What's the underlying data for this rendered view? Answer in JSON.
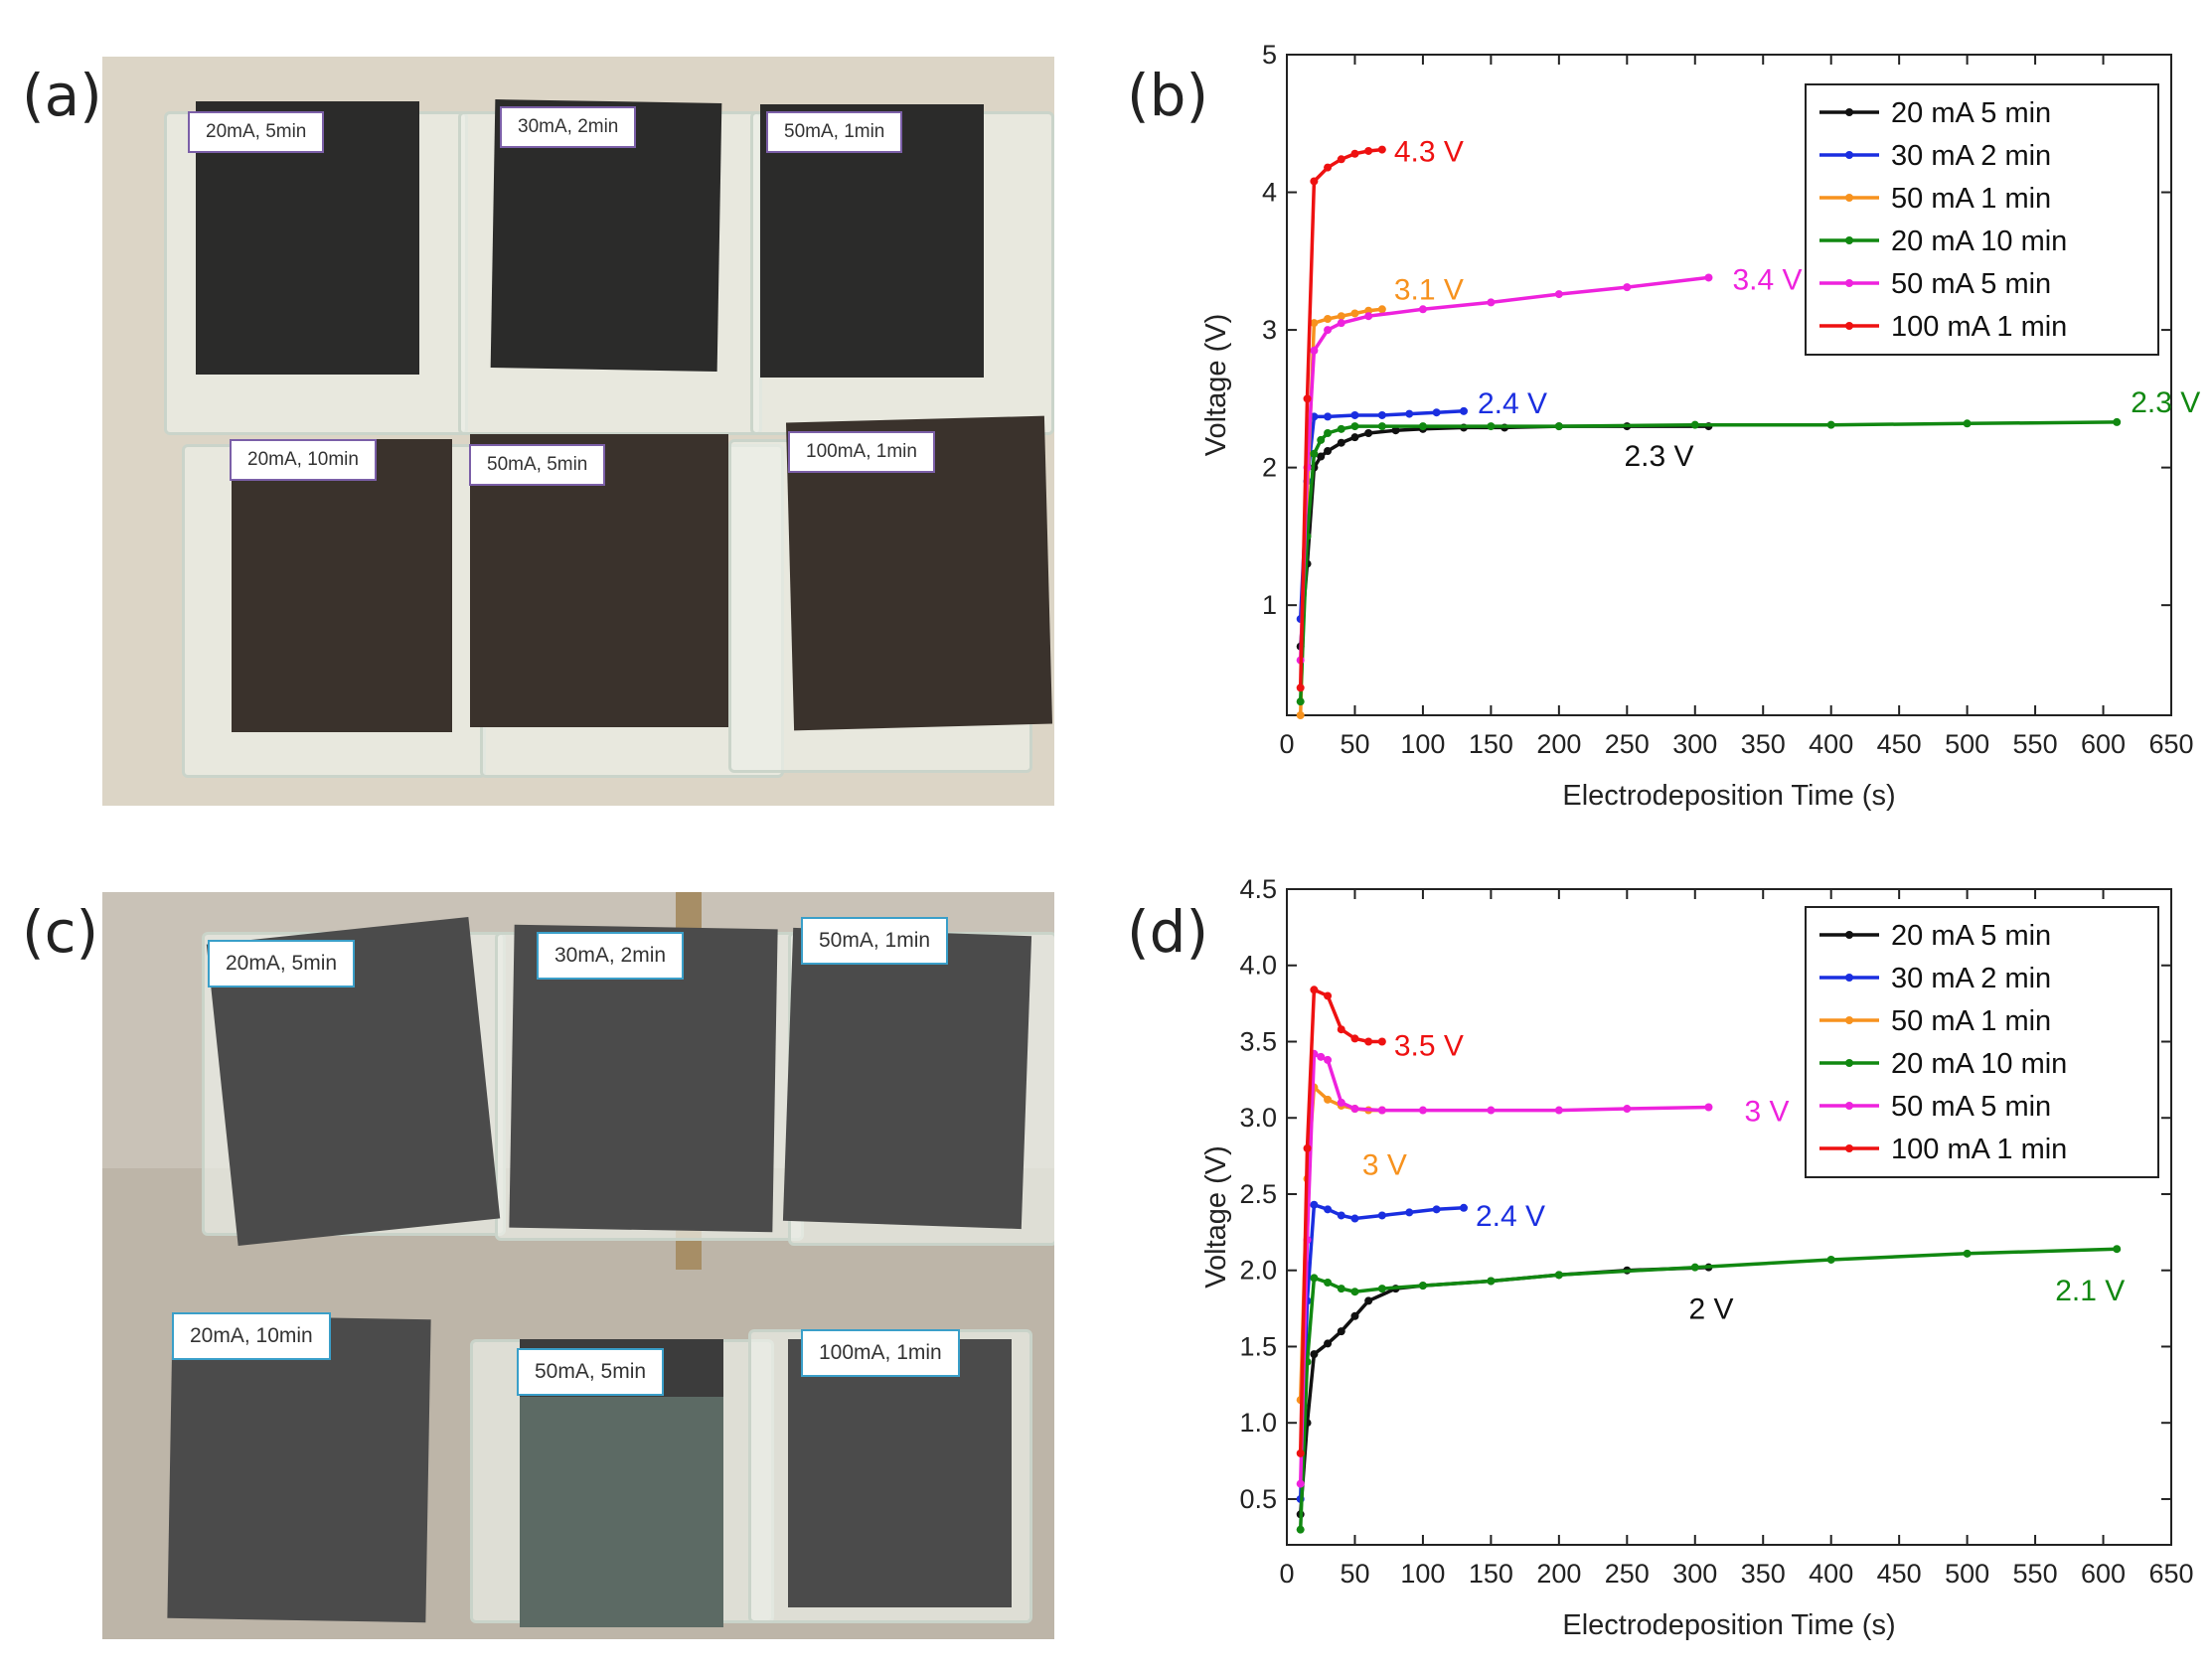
{
  "panels": {
    "a": "(a)",
    "b": "(b)",
    "c": "(c)",
    "d": "(d)"
  },
  "photo_a": {
    "labels": [
      "20mA, 5min",
      "30mA, 2min",
      "50mA, 1min",
      "20mA, 10min",
      "50mA, 5min",
      "100mA, 1min"
    ]
  },
  "photo_c": {
    "labels": [
      "20mA, 5min",
      "30mA, 2min",
      "50mA, 1min",
      "20mA, 10min",
      "50mA, 5min",
      "100mA, 1min"
    ]
  },
  "chart_data": [
    {
      "type": "line",
      "panel": "(b)",
      "xlabel": "Electrodeposition Time (s)",
      "ylabel": "Voltage (V)",
      "xlim": [
        0,
        650
      ],
      "ylim": [
        0.2,
        5
      ],
      "xticks": [
        0,
        50,
        100,
        150,
        200,
        250,
        300,
        350,
        400,
        450,
        500,
        550,
        600,
        650
      ],
      "yticks": [
        1,
        2,
        3,
        4,
        5
      ],
      "legend_position": "top-right",
      "series": [
        {
          "name": "20 mA 5 min",
          "color": "#111111",
          "x": [
            10,
            15,
            20,
            25,
            30,
            40,
            50,
            60,
            80,
            100,
            130,
            160,
            200,
            250,
            310
          ],
          "y": [
            0.7,
            1.3,
            2.0,
            2.08,
            2.12,
            2.18,
            2.22,
            2.25,
            2.27,
            2.28,
            2.29,
            2.29,
            2.3,
            2.3,
            2.3
          ]
        },
        {
          "name": "30 mA 2 min",
          "color": "#1a2ee0",
          "x": [
            10,
            15,
            20,
            30,
            50,
            70,
            90,
            110,
            130
          ],
          "y": [
            0.9,
            1.9,
            2.37,
            2.37,
            2.38,
            2.38,
            2.39,
            2.4,
            2.41
          ]
        },
        {
          "name": "50 mA 1 min",
          "color": "#f7921e",
          "x": [
            10,
            15,
            20,
            30,
            40,
            50,
            60,
            70
          ],
          "y": [
            0.2,
            1.8,
            3.05,
            3.08,
            3.1,
            3.12,
            3.14,
            3.15
          ]
        },
        {
          "name": "20 mA 10 min",
          "color": "#118811",
          "x": [
            10,
            15,
            20,
            25,
            30,
            40,
            50,
            70,
            100,
            150,
            200,
            300,
            400,
            500,
            610
          ],
          "y": [
            0.3,
            1.5,
            2.1,
            2.2,
            2.25,
            2.28,
            2.3,
            2.3,
            2.3,
            2.3,
            2.3,
            2.31,
            2.31,
            2.32,
            2.33
          ]
        },
        {
          "name": "50 mA 5 min",
          "color": "#ee22dd",
          "x": [
            10,
            15,
            20,
            30,
            40,
            60,
            100,
            150,
            200,
            250,
            310
          ],
          "y": [
            0.6,
            2.0,
            2.85,
            3.0,
            3.05,
            3.1,
            3.15,
            3.2,
            3.26,
            3.31,
            3.38
          ]
        },
        {
          "name": "100 mA 1 min",
          "color": "#ee1111",
          "x": [
            10,
            15,
            20,
            30,
            40,
            50,
            60,
            70
          ],
          "y": [
            0.4,
            2.5,
            4.08,
            4.18,
            4.24,
            4.28,
            4.3,
            4.31
          ]
        }
      ],
      "annotations": [
        {
          "text": "4.3 V",
          "color": "#ee1111"
        },
        {
          "text": "3.1 V",
          "color": "#f7921e"
        },
        {
          "text": "3.4 V",
          "color": "#ee22dd"
        },
        {
          "text": "2.4 V",
          "color": "#1a2ee0"
        },
        {
          "text": "2.3 V",
          "color": "#118811"
        },
        {
          "text": "2.3 V",
          "color": "#111111"
        }
      ]
    },
    {
      "type": "line",
      "panel": "(d)",
      "xlabel": "Electrodeposition Time (s)",
      "ylabel": "Voltage (V)",
      "xlim": [
        0,
        650
      ],
      "ylim": [
        0.2,
        4.5
      ],
      "xticks": [
        0,
        50,
        100,
        150,
        200,
        250,
        300,
        350,
        400,
        450,
        500,
        550,
        600,
        650
      ],
      "yticks": [
        0.5,
        1.0,
        1.5,
        2.0,
        2.5,
        3.0,
        3.5,
        4.0,
        4.5
      ],
      "legend_position": "top-right",
      "series": [
        {
          "name": "20 mA 5 min",
          "color": "#111111",
          "x": [
            10,
            15,
            20,
            30,
            40,
            50,
            60,
            80,
            100,
            150,
            200,
            250,
            310
          ],
          "y": [
            0.4,
            1.0,
            1.45,
            1.52,
            1.6,
            1.7,
            1.8,
            1.88,
            1.9,
            1.93,
            1.97,
            2.0,
            2.02
          ]
        },
        {
          "name": "30 mA 2 min",
          "color": "#1a2ee0",
          "x": [
            10,
            15,
            20,
            30,
            40,
            50,
            70,
            90,
            110,
            130
          ],
          "y": [
            0.5,
            1.8,
            2.43,
            2.4,
            2.36,
            2.34,
            2.36,
            2.38,
            2.4,
            2.41
          ]
        },
        {
          "name": "50 mA 1 min",
          "color": "#f7921e",
          "x": [
            10,
            15,
            20,
            30,
            40,
            50,
            60,
            70
          ],
          "y": [
            1.15,
            2.6,
            3.2,
            3.12,
            3.08,
            3.06,
            3.05,
            3.05
          ]
        },
        {
          "name": "20 mA 10 min",
          "color": "#118811",
          "x": [
            10,
            15,
            20,
            30,
            40,
            50,
            70,
            100,
            150,
            200,
            300,
            400,
            500,
            610
          ],
          "y": [
            0.3,
            1.4,
            1.95,
            1.92,
            1.88,
            1.86,
            1.88,
            1.9,
            1.93,
            1.97,
            2.02,
            2.07,
            2.11,
            2.14
          ]
        },
        {
          "name": "50 mA 5 min",
          "color": "#ee22dd",
          "x": [
            10,
            15,
            20,
            25,
            30,
            40,
            50,
            70,
            100,
            150,
            200,
            250,
            310
          ],
          "y": [
            0.6,
            2.2,
            3.42,
            3.4,
            3.38,
            3.1,
            3.06,
            3.05,
            3.05,
            3.05,
            3.05,
            3.06,
            3.07
          ]
        },
        {
          "name": "100 mA 1 min",
          "color": "#ee1111",
          "x": [
            10,
            15,
            20,
            30,
            40,
            50,
            60,
            70
          ],
          "y": [
            0.8,
            2.8,
            3.84,
            3.8,
            3.58,
            3.52,
            3.5,
            3.5
          ]
        }
      ],
      "annotations": [
        {
          "text": "3.5 V",
          "color": "#ee1111"
        },
        {
          "text": "3 V",
          "color": "#ee22dd"
        },
        {
          "text": "3 V",
          "color": "#f7921e"
        },
        {
          "text": "2.4 V",
          "color": "#1a2ee0"
        },
        {
          "text": "2 V",
          "color": "#111111"
        },
        {
          "text": "2.1 V",
          "color": "#118811"
        }
      ]
    }
  ]
}
